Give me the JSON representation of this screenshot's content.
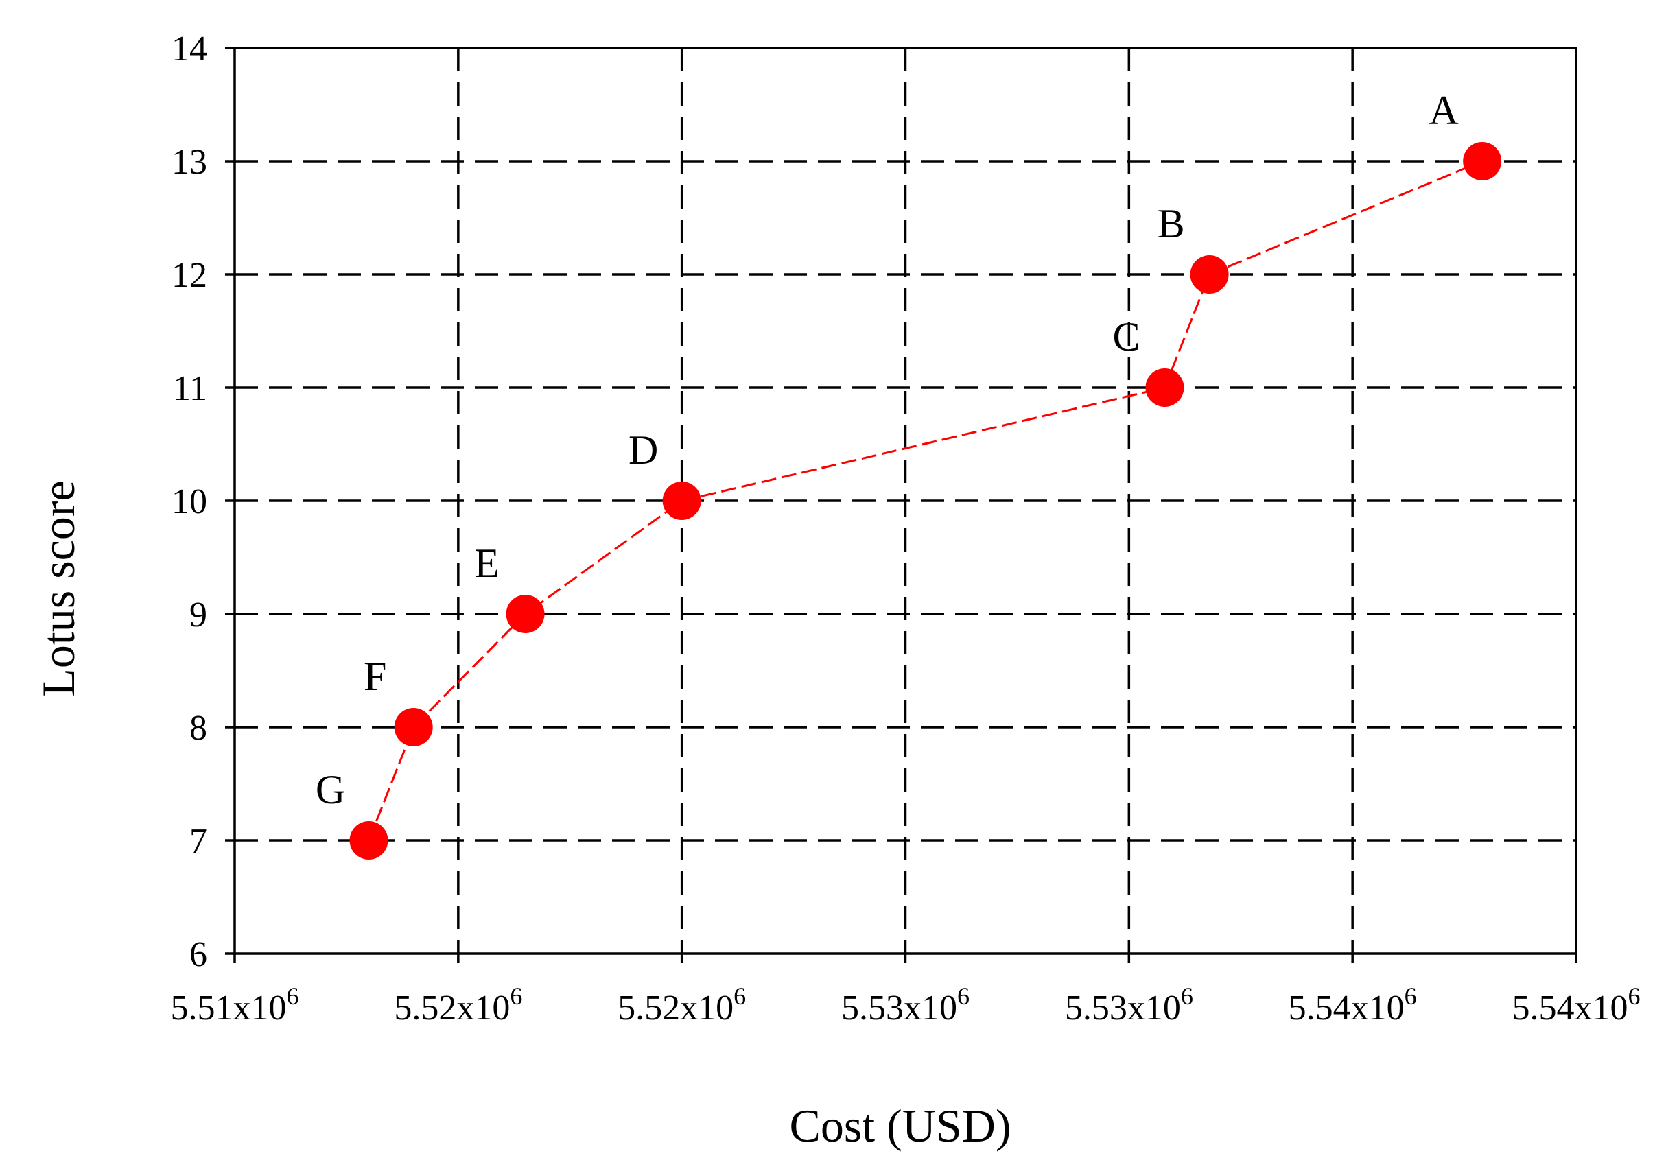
{
  "chart_data": {
    "type": "scatter",
    "title": "",
    "xlabel": "Cost (USD)",
    "ylabel": "Lotus score",
    "xlim": [
      5510000,
      5540000
    ],
    "ylim": [
      6,
      14
    ],
    "x_ticks": [
      5510000,
      5515000,
      5520000,
      5525000,
      5530000,
      5535000,
      5540000
    ],
    "x_tick_labels": [
      {
        "mant": "5.51x10",
        "exp": "6"
      },
      {
        "mant": "5.52x10",
        "exp": "6"
      },
      {
        "mant": "5.52x10",
        "exp": "6"
      },
      {
        "mant": "5.53x10",
        "exp": "6"
      },
      {
        "mant": "5.53x10",
        "exp": "6"
      },
      {
        "mant": "5.54x10",
        "exp": "6"
      },
      {
        "mant": "5.54x10",
        "exp": "6"
      }
    ],
    "y_ticks": [
      6,
      7,
      8,
      9,
      10,
      11,
      12,
      13,
      14
    ],
    "y_tick_labels": [
      "6",
      "7",
      "8",
      "9",
      "10",
      "11",
      "12",
      "13",
      "14"
    ],
    "grid": true,
    "grid_style": "dashed",
    "connected": true,
    "series": [
      {
        "color": "#ff0000",
        "points": [
          {
            "label": "G",
            "x": 5513000,
            "y": 7
          },
          {
            "label": "F",
            "x": 5514000,
            "y": 8
          },
          {
            "label": "E",
            "x": 5516500,
            "y": 9
          },
          {
            "label": "D",
            "x": 5520000,
            "y": 10
          },
          {
            "label": "C",
            "x": 5530800,
            "y": 11
          },
          {
            "label": "B",
            "x": 5531800,
            "y": 12
          },
          {
            "label": "A",
            "x": 5537900,
            "y": 13
          }
        ]
      }
    ]
  }
}
